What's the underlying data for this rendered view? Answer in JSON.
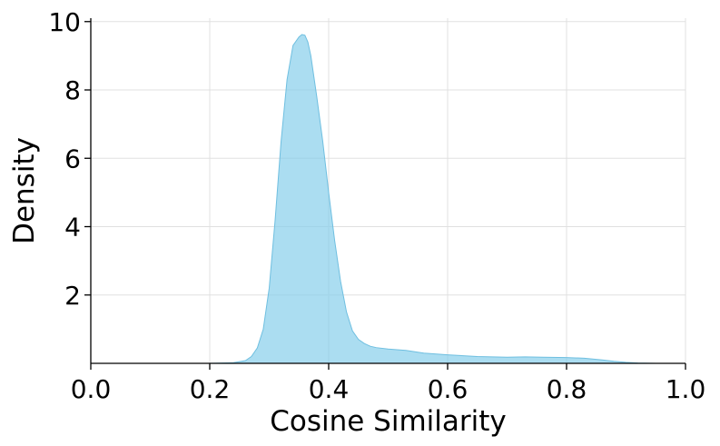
{
  "chart_data": {
    "type": "area",
    "title": "",
    "xlabel": "Cosine Similarity",
    "ylabel": "Density",
    "xlim": [
      0.0,
      1.0
    ],
    "ylim": [
      0,
      10.1
    ],
    "grid": true,
    "legend": "none",
    "x_ticks": [
      {
        "value": 0.0,
        "label": "0.0"
      },
      {
        "value": 0.2,
        "label": "0.2"
      },
      {
        "value": 0.4,
        "label": "0.4"
      },
      {
        "value": 0.6,
        "label": "0.6"
      },
      {
        "value": 0.8,
        "label": "0.8"
      },
      {
        "value": 1.0,
        "label": "1.0"
      }
    ],
    "y_ticks": [
      {
        "value": 2,
        "label": "2"
      },
      {
        "value": 4,
        "label": "4"
      },
      {
        "value": 6,
        "label": "6"
      },
      {
        "value": 8,
        "label": "8"
      },
      {
        "value": 10,
        "label": "10"
      }
    ],
    "colors": {
      "fill": "#87ceeb",
      "line": "#6fbfe0",
      "axis": "#000000",
      "grid": "#e0e0e0"
    },
    "series": [
      {
        "x": [
          0.2,
          0.24,
          0.26,
          0.27,
          0.28,
          0.29,
          0.3,
          0.31,
          0.32,
          0.33,
          0.34,
          0.35,
          0.355,
          0.36,
          0.365,
          0.37,
          0.38,
          0.39,
          0.4,
          0.41,
          0.42,
          0.43,
          0.44,
          0.45,
          0.46,
          0.47,
          0.48,
          0.5,
          0.53,
          0.56,
          0.6,
          0.65,
          0.7,
          0.73,
          0.76,
          0.8,
          0.83,
          0.86,
          0.88,
          0.9,
          0.92,
          0.95
        ],
        "y": [
          0.0,
          0.02,
          0.08,
          0.2,
          0.45,
          1.0,
          2.2,
          4.2,
          6.5,
          8.3,
          9.3,
          9.55,
          9.62,
          9.6,
          9.4,
          9.0,
          7.8,
          6.5,
          5.0,
          3.6,
          2.4,
          1.5,
          0.95,
          0.7,
          0.58,
          0.5,
          0.46,
          0.42,
          0.38,
          0.3,
          0.25,
          0.2,
          0.18,
          0.19,
          0.18,
          0.17,
          0.15,
          0.1,
          0.06,
          0.03,
          0.01,
          0.0
        ]
      }
    ]
  }
}
